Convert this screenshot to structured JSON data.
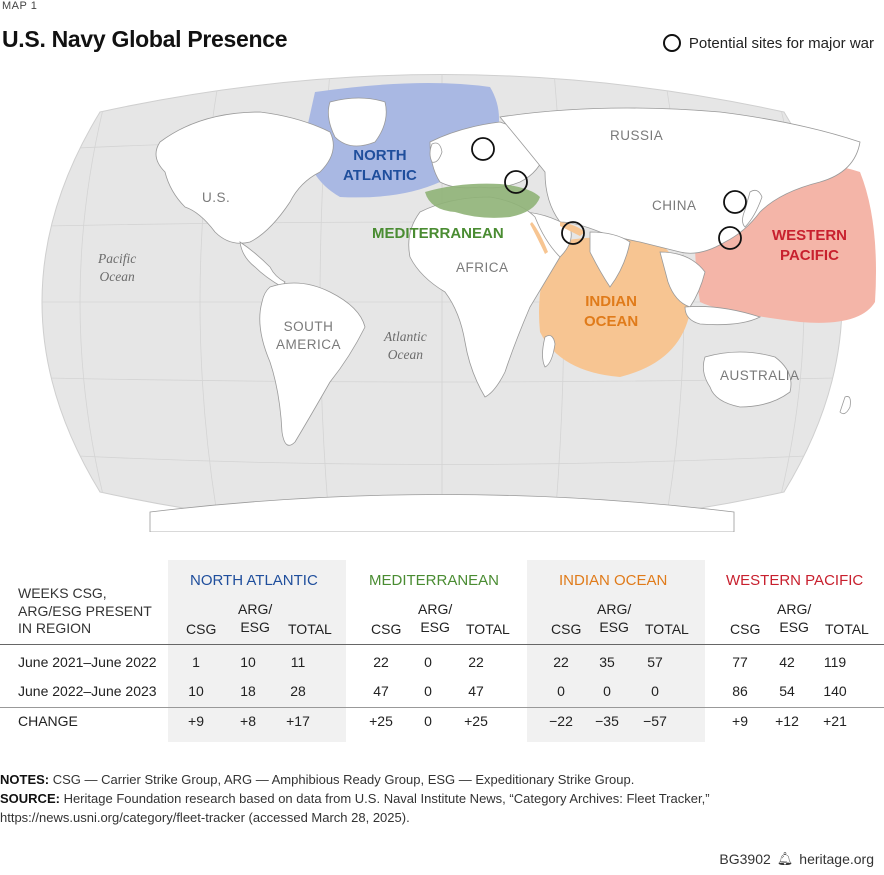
{
  "kicker": "MAP 1",
  "title": "U.S. Navy Global Presence",
  "legend": {
    "label": "Potential sites for major war",
    "icon": "circle-icon"
  },
  "map_labels": {
    "countries": [
      "U.S.",
      "RUSSIA",
      "CHINA",
      "AFRICA",
      "SOUTH\nAMERICA",
      "AUSTRALIA"
    ],
    "oceans": [
      "Pacific\nOcean",
      "Atlantic\nOcean"
    ],
    "regions": [
      {
        "name": "NORTH\nATLANTIC",
        "color": "#1f4e9c",
        "fill": "#a9b8e3"
      },
      {
        "name": "MEDITERRANEAN",
        "color": "#4a8c32",
        "fill": "#8fb277"
      },
      {
        "name": "INDIAN\nOCEAN",
        "color": "#e07b1a",
        "fill": "#f7c592"
      },
      {
        "name": "WESTERN\nPACIFIC",
        "color": "#c8202e",
        "fill": "#f4b5a8"
      }
    ]
  },
  "table": {
    "row_header": "WEEKS CSG,\nARG/ESG PRESENT\nIN REGION",
    "regions": [
      "NORTH ATLANTIC",
      "MEDITERRANEAN",
      "INDIAN OCEAN",
      "WESTERN PACIFIC"
    ],
    "subcols": [
      "CSG",
      "ARG/\nESG",
      "TOTAL"
    ],
    "rows": [
      {
        "label": "June 2021–June 2022",
        "values": [
          "1",
          "10",
          "11",
          "22",
          "0",
          "22",
          "22",
          "35",
          "57",
          "77",
          "42",
          "119"
        ]
      },
      {
        "label": "June 2022–June 2023",
        "values": [
          "10",
          "18",
          "28",
          "47",
          "0",
          "47",
          "0",
          "0",
          "0",
          "86",
          "54",
          "140"
        ]
      },
      {
        "label": "CHANGE",
        "values": [
          "+9",
          "+8",
          "+17",
          "+25",
          "0",
          "+25",
          "−22",
          "−35",
          "−57",
          "+9",
          "+12",
          "+21"
        ]
      }
    ]
  },
  "notes": {
    "notes_label": "NOTES:",
    "notes_text": " CSG — Carrier Strike Group, ARG — Amphibious Ready Group, ESG — Expeditionary Strike Group.",
    "source_label": "SOURCE:",
    "source_text": " Heritage Foundation research based on data from U.S. Naval Institute News, “Category Archives: Fleet Tracker,”",
    "source_url": "https://news.usni.org/category/fleet-tracker (accessed March 28, 2025)."
  },
  "footer": {
    "code": "BG3902",
    "site": "heritage.org",
    "icon": "bell-icon"
  }
}
